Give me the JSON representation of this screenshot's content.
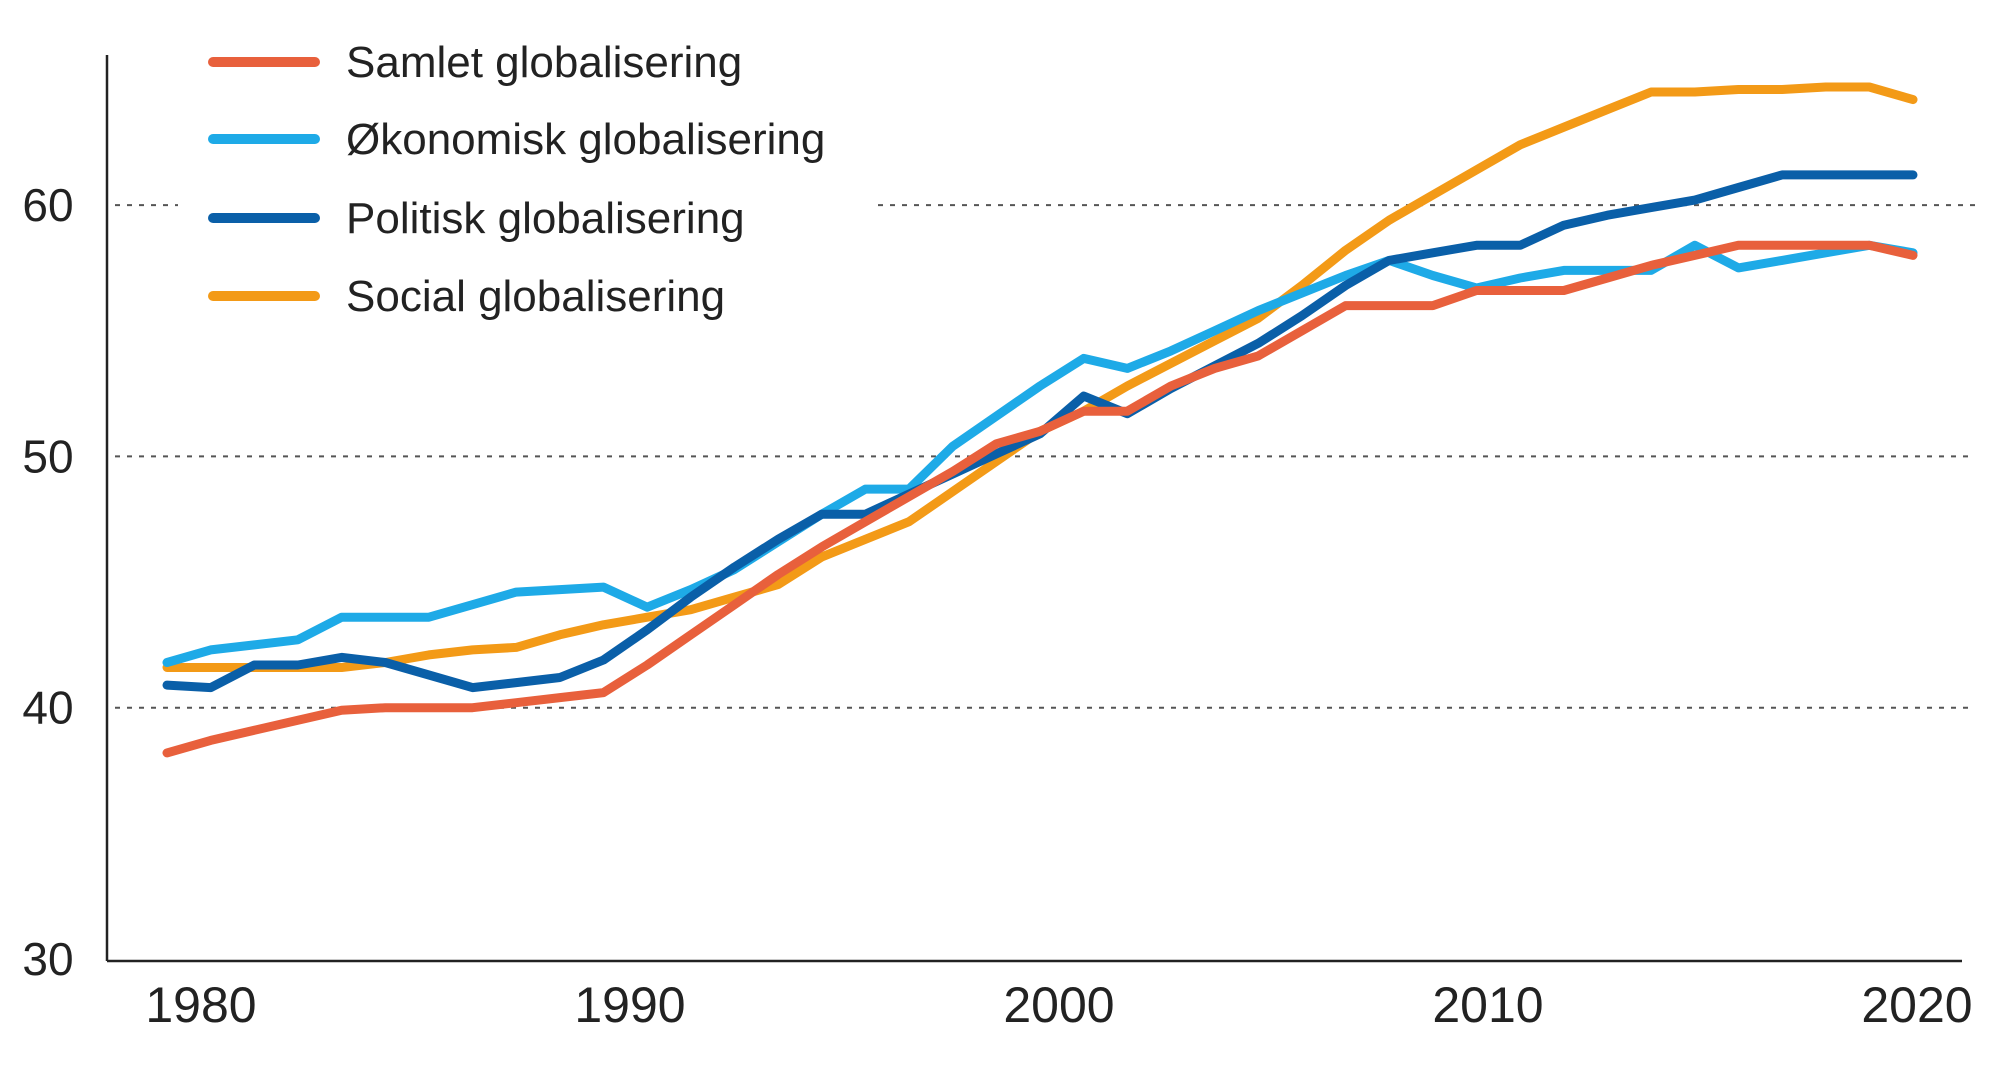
{
  "chart_data": {
    "type": "line",
    "title": "",
    "xlabel": "",
    "ylabel": "",
    "xlim": [
      1980,
      2020
    ],
    "ylim": [
      30,
      65
    ],
    "x_ticks": [
      1980,
      1990,
      2000,
      2010,
      2020
    ],
    "y_ticks": [
      30,
      40,
      50,
      60
    ],
    "grid": "horizontal dotted at 40, 50, 60",
    "legend": "top-left",
    "x": [
      1980,
      1981,
      1982,
      1983,
      1984,
      1985,
      1986,
      1987,
      1988,
      1989,
      1990,
      1991,
      1992,
      1993,
      1994,
      1995,
      1996,
      1997,
      1998,
      1999,
      2000,
      2001,
      2002,
      2003,
      2004,
      2005,
      2006,
      2007,
      2008,
      2009,
      2010,
      2011,
      2012,
      2013,
      2014,
      2015,
      2016,
      2017,
      2018,
      2019,
      2020
    ],
    "series": [
      {
        "name": "Samlet globalisering",
        "color": "#e8603c",
        "values": [
          38.2,
          38.7,
          39.1,
          39.5,
          39.9,
          40.0,
          40.0,
          40.0,
          40.2,
          40.4,
          40.6,
          41.7,
          42.9,
          44.1,
          45.3,
          46.4,
          47.4,
          48.4,
          49.4,
          50.5,
          51.0,
          51.8,
          51.8,
          52.8,
          53.5,
          54.0,
          55.0,
          56.0,
          56.0,
          56.0,
          56.6,
          56.6,
          56.6,
          57.1,
          57.6,
          58.0,
          58.4,
          58.4,
          58.4,
          58.4,
          58.0
        ]
      },
      {
        "name": "Økonomisk globalisering",
        "color": "#1eaae7",
        "values": [
          41.8,
          42.3,
          42.5,
          42.7,
          43.6,
          43.6,
          43.6,
          44.1,
          44.6,
          44.7,
          44.8,
          44.0,
          44.7,
          45.5,
          46.6,
          47.7,
          48.7,
          48.7,
          50.4,
          51.6,
          52.8,
          53.9,
          53.5,
          54.2,
          55.0,
          55.8,
          56.5,
          57.2,
          57.8,
          57.2,
          56.7,
          57.1,
          57.4,
          57.4,
          57.4,
          58.4,
          57.5,
          57.8,
          58.1,
          58.4,
          58.1
        ]
      },
      {
        "name": "Politisk globalisering",
        "color": "#0a5fa8",
        "values": [
          40.9,
          40.8,
          41.7,
          41.7,
          42.0,
          41.8,
          41.3,
          40.8,
          41.0,
          41.2,
          41.9,
          43.1,
          44.4,
          45.6,
          46.7,
          47.7,
          47.7,
          48.5,
          49.3,
          50.1,
          50.9,
          52.4,
          51.7,
          52.7,
          53.6,
          54.5,
          55.6,
          56.8,
          57.8,
          58.1,
          58.4,
          58.4,
          59.2,
          59.6,
          59.9,
          60.2,
          60.7,
          61.2,
          61.2,
          61.2,
          61.2
        ]
      },
      {
        "name": "Social globalisering",
        "color": "#f39a17",
        "values": [
          41.6,
          41.6,
          41.6,
          41.6,
          41.6,
          41.8,
          42.1,
          42.3,
          42.4,
          42.9,
          43.3,
          43.6,
          43.9,
          44.4,
          44.9,
          46.0,
          46.7,
          47.4,
          48.6,
          49.8,
          51.0,
          51.8,
          52.8,
          53.7,
          54.6,
          55.5,
          56.8,
          58.2,
          59.4,
          60.4,
          61.4,
          62.4,
          63.1,
          63.8,
          64.5,
          64.5,
          64.6,
          64.6,
          64.7,
          64.7,
          64.2
        ]
      }
    ]
  }
}
